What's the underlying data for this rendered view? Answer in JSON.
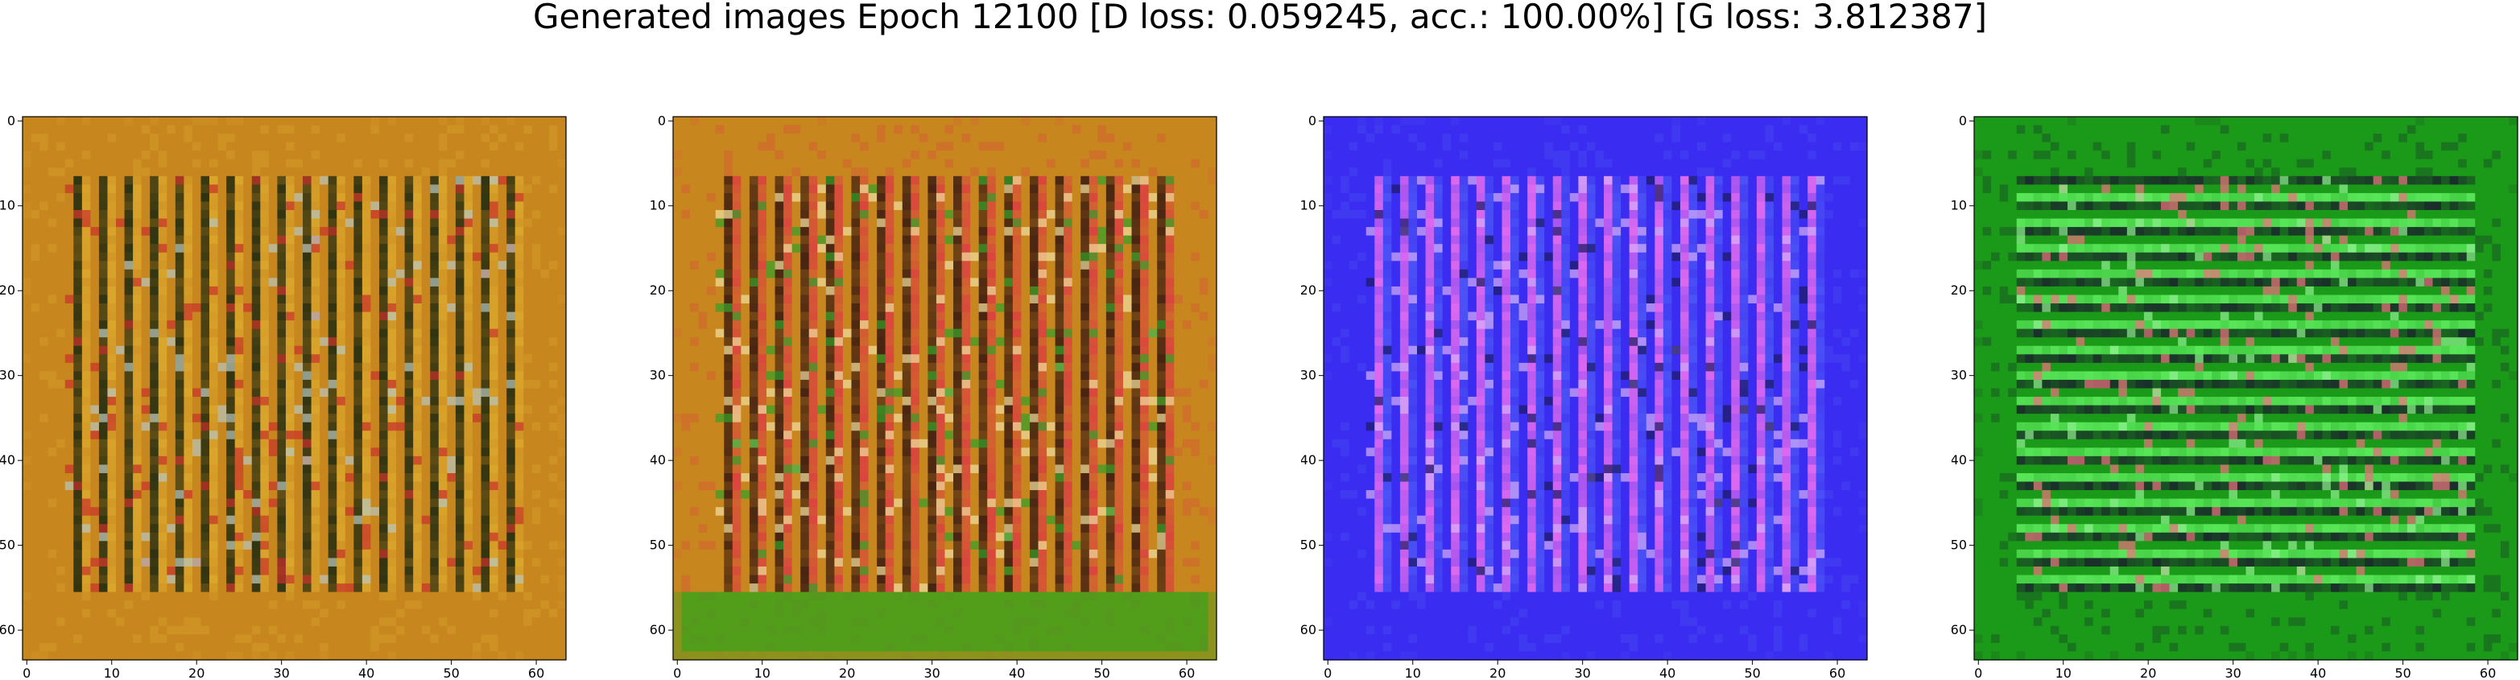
{
  "title": "Generated images Epoch 12100 [D loss: 0.059245, acc.: 100.00%] [G loss: 3.812387]",
  "axis_ticks": {
    "x": [
      "0",
      "10",
      "20",
      "30",
      "40",
      "50",
      "60"
    ],
    "y": [
      "0",
      "10",
      "20",
      "30",
      "40",
      "50",
      "60"
    ]
  },
  "image_range": [
    0,
    63
  ],
  "images": [
    {
      "name": "sample-1",
      "base": "#c8861e",
      "accents": [
        "#1e2a10",
        "#e0b030",
        "#c8302a",
        "#b8c8c0"
      ],
      "bottom": "#a06818",
      "stripes": "vertical"
    },
    {
      "name": "sample-2",
      "base": "#c8861e",
      "accents": [
        "#3a1a10",
        "#e03048",
        "#f0e0a0",
        "#30a028"
      ],
      "bottom": "#20a818",
      "stripes": "vertical"
    },
    {
      "name": "sample-3",
      "base": "#3a2cf0",
      "accents": [
        "#f070f0",
        "#5060f8",
        "#d8b0f8",
        "#1a1a60"
      ],
      "bottom": "#3030e0",
      "stripes": "vertical"
    },
    {
      "name": "sample-4",
      "base": "#1a9a18",
      "accents": [
        "#60f060",
        "#1a0a30",
        "#f07080",
        "#90f090"
      ],
      "bottom": "#128a12",
      "stripes": "horizontal"
    }
  ]
}
